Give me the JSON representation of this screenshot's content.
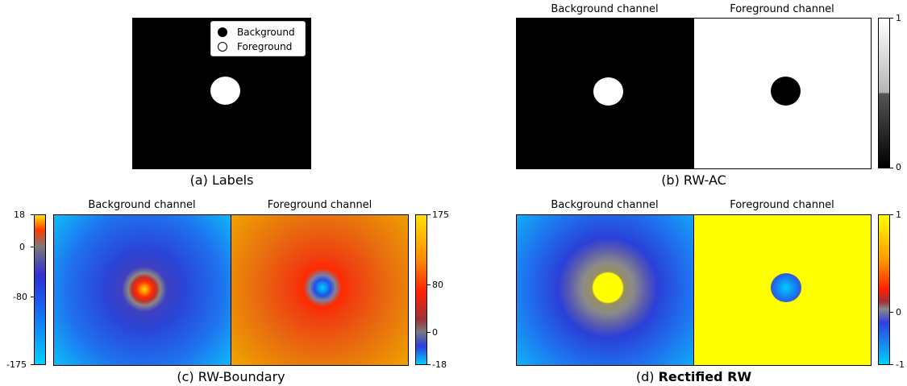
{
  "panel_a": {
    "caption": "(a) Labels",
    "legend": {
      "background_label": "Background",
      "foreground_label": "Foreground"
    }
  },
  "panel_b": {
    "caption": "(b) RW-AC",
    "title_bg": "Background channel",
    "title_fg": "Foreground channel",
    "cbar_ticks": [
      "1",
      "0"
    ]
  },
  "panel_c": {
    "caption": "(c) RW-Boundary",
    "title_bg": "Background channel",
    "title_fg": "Foreground channel",
    "left_cbar_ticks": [
      "18",
      "0",
      "-80",
      "-175"
    ],
    "right_cbar_ticks": [
      "175",
      "80",
      "0",
      "-18"
    ]
  },
  "panel_d": {
    "caption_prefix": "(d)",
    "caption_bold": "Rectified RW",
    "title_bg": "Background channel",
    "title_fg": "Foreground channel",
    "cbar_ticks": [
      "1",
      "0",
      "-1"
    ]
  },
  "colors": {
    "background_label": "#000000",
    "foreground_label": "#ffffff",
    "rw_hot": "#ff1a00",
    "rw_cold": "#00d0ff",
    "rectified_max": "#ffff00"
  }
}
